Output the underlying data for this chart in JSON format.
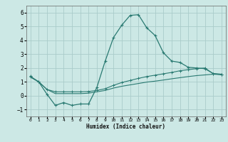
{
  "title": "",
  "xlabel": "Humidex (Indice chaleur)",
  "xlim": [
    -0.5,
    23.5
  ],
  "ylim": [
    -1.5,
    6.5
  ],
  "xticks": [
    0,
    1,
    2,
    3,
    4,
    5,
    6,
    7,
    8,
    9,
    10,
    11,
    12,
    13,
    14,
    15,
    16,
    17,
    18,
    19,
    20,
    21,
    22,
    23
  ],
  "yticks": [
    -1,
    0,
    1,
    2,
    3,
    4,
    5,
    6
  ],
  "background_color": "#cce8e5",
  "grid_color": "#aaccca",
  "line_color": "#2a7a72",
  "line1_x": [
    0,
    1,
    2,
    3,
    4,
    5,
    6,
    7,
    8,
    9,
    10,
    11,
    12,
    13,
    14,
    15,
    16,
    17,
    18,
    19,
    20,
    21,
    22,
    23
  ],
  "line1_y": [
    1.4,
    1.0,
    0.1,
    -0.7,
    -0.5,
    -0.7,
    -0.6,
    -0.6,
    0.6,
    2.5,
    4.2,
    5.1,
    5.8,
    5.85,
    4.9,
    4.35,
    3.1,
    2.5,
    2.4,
    2.05,
    2.0,
    1.95,
    1.6,
    1.55
  ],
  "line2_x": [
    0,
    1,
    2,
    3,
    4,
    5,
    6,
    7,
    8,
    9,
    10,
    11,
    12,
    13,
    14,
    15,
    16,
    17,
    18,
    19,
    20,
    21,
    22,
    23
  ],
  "line2_y": [
    1.35,
    1.0,
    0.45,
    0.28,
    0.28,
    0.28,
    0.28,
    0.3,
    0.38,
    0.5,
    0.75,
    0.95,
    1.1,
    1.25,
    1.38,
    1.48,
    1.58,
    1.68,
    1.8,
    1.88,
    1.95,
    2.0,
    1.58,
    1.52
  ],
  "line3_x": [
    0,
    1,
    2,
    3,
    4,
    5,
    6,
    7,
    8,
    9,
    10,
    11,
    12,
    13,
    14,
    15,
    16,
    17,
    18,
    19,
    20,
    21,
    22,
    23
  ],
  "line3_y": [
    1.35,
    1.0,
    0.45,
    0.15,
    0.15,
    0.15,
    0.15,
    0.18,
    0.28,
    0.38,
    0.55,
    0.68,
    0.78,
    0.88,
    0.98,
    1.05,
    1.13,
    1.22,
    1.3,
    1.38,
    1.45,
    1.5,
    1.55,
    1.52
  ]
}
